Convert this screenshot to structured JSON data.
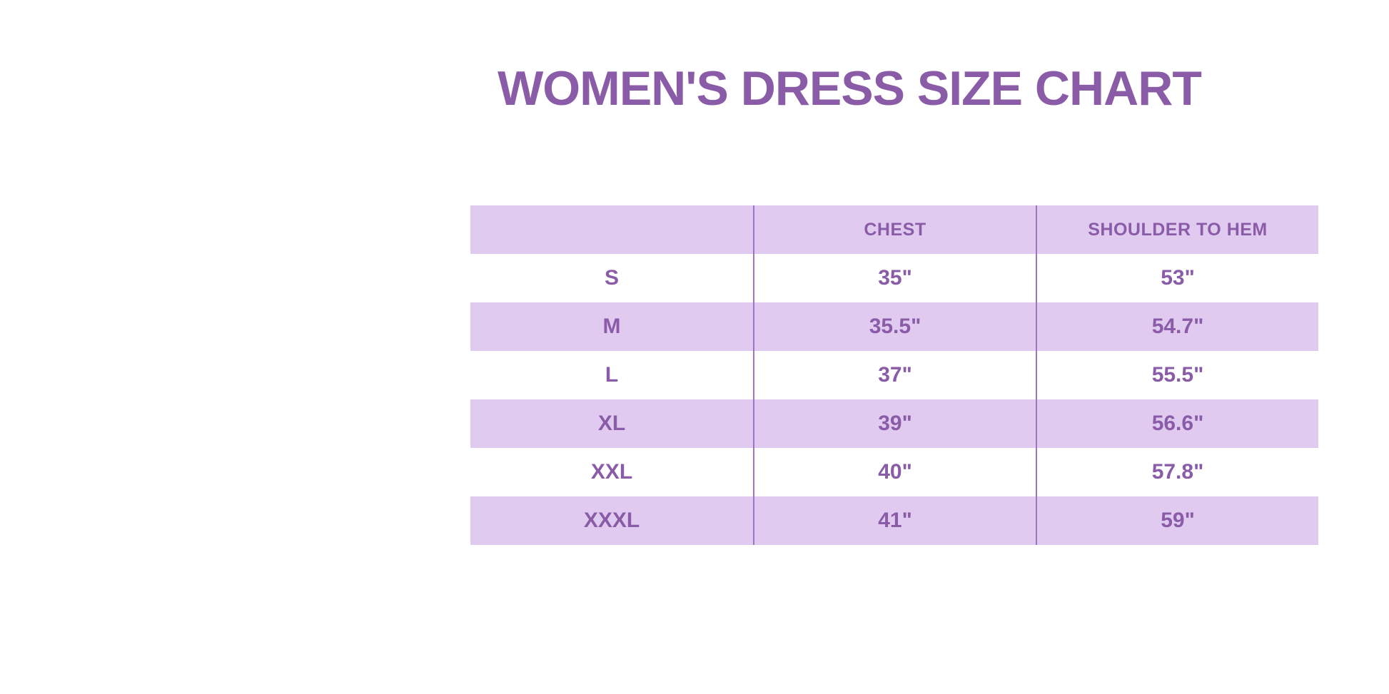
{
  "title": "WOMEN'S DRESS SIZE CHART",
  "colors": {
    "text_purple": "#8A5CA8",
    "row_lavender": "#E0CAF0",
    "divider_purple": "#9D75C3",
    "background": "#FFFFFF"
  },
  "chart_data": {
    "type": "table",
    "title": "WOMEN'S DRESS SIZE CHART",
    "columns": [
      "",
      "CHEST",
      "SHOULDER TO HEM"
    ],
    "rows": [
      [
        "S",
        "35\"",
        "53\""
      ],
      [
        "M",
        "35.5\"",
        "54.7\""
      ],
      [
        "L",
        "37\"",
        "55.5\""
      ],
      [
        "XL",
        "39\"",
        "56.6\""
      ],
      [
        "XXL",
        "40\"",
        "57.8\""
      ],
      [
        "XXXL",
        "41\"",
        "59\""
      ]
    ],
    "layout": {
      "row_striping": "header and even data rows lavender, odd data rows white",
      "grid": "vertical dividers between columns only, no horizontal lines"
    }
  }
}
